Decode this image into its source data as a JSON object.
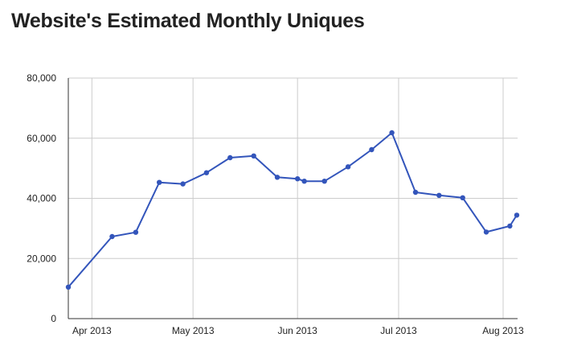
{
  "chart_data": {
    "type": "line",
    "title": "Website's Estimated Monthly Uniques",
    "xlabel": "",
    "ylabel": "",
    "ylim": [
      0,
      80000
    ],
    "y_ticks": [
      {
        "value": 0,
        "label": "0"
      },
      {
        "value": 20000,
        "label": "20,000"
      },
      {
        "value": 40000,
        "label": "40,000"
      },
      {
        "value": 60000,
        "label": "60,000"
      },
      {
        "value": 80000,
        "label": "80,000"
      }
    ],
    "xlim": [
      "2013-03-25",
      "2013-08-05"
    ],
    "x_ticks": [
      {
        "value": "2013-04-01",
        "label": "Apr 2013"
      },
      {
        "value": "2013-05-01",
        "label": "May 2013"
      },
      {
        "value": "2013-06-01",
        "label": "Jun 2013"
      },
      {
        "value": "2013-07-01",
        "label": "Jul 2013"
      },
      {
        "value": "2013-08-01",
        "label": "Aug 2013"
      }
    ],
    "grid": true,
    "legend": "none",
    "series": [
      {
        "color": "#3355bb",
        "points": [
          {
            "x": "2013-03-25",
            "y": 10500
          },
          {
            "x": "2013-04-07",
            "y": 27300
          },
          {
            "x": "2013-04-14",
            "y": 28700
          },
          {
            "x": "2013-04-21",
            "y": 45300
          },
          {
            "x": "2013-04-28",
            "y": 44800
          },
          {
            "x": "2013-05-05",
            "y": 48500
          },
          {
            "x": "2013-05-12",
            "y": 53500
          },
          {
            "x": "2013-05-19",
            "y": 54100
          },
          {
            "x": "2013-05-26",
            "y": 47000
          },
          {
            "x": "2013-06-01",
            "y": 46500
          },
          {
            "x": "2013-06-03",
            "y": 45700
          },
          {
            "x": "2013-06-09",
            "y": 45700
          },
          {
            "x": "2013-06-16",
            "y": 50500
          },
          {
            "x": "2013-06-23",
            "y": 56200
          },
          {
            "x": "2013-06-29",
            "y": 61800
          },
          {
            "x": "2013-07-06",
            "y": 42000
          },
          {
            "x": "2013-07-13",
            "y": 41000
          },
          {
            "x": "2013-07-20",
            "y": 40200
          },
          {
            "x": "2013-07-27",
            "y": 28800
          },
          {
            "x": "2013-08-03",
            "y": 30800
          },
          {
            "x": "2013-08-08",
            "y": 34400
          }
        ]
      }
    ]
  }
}
